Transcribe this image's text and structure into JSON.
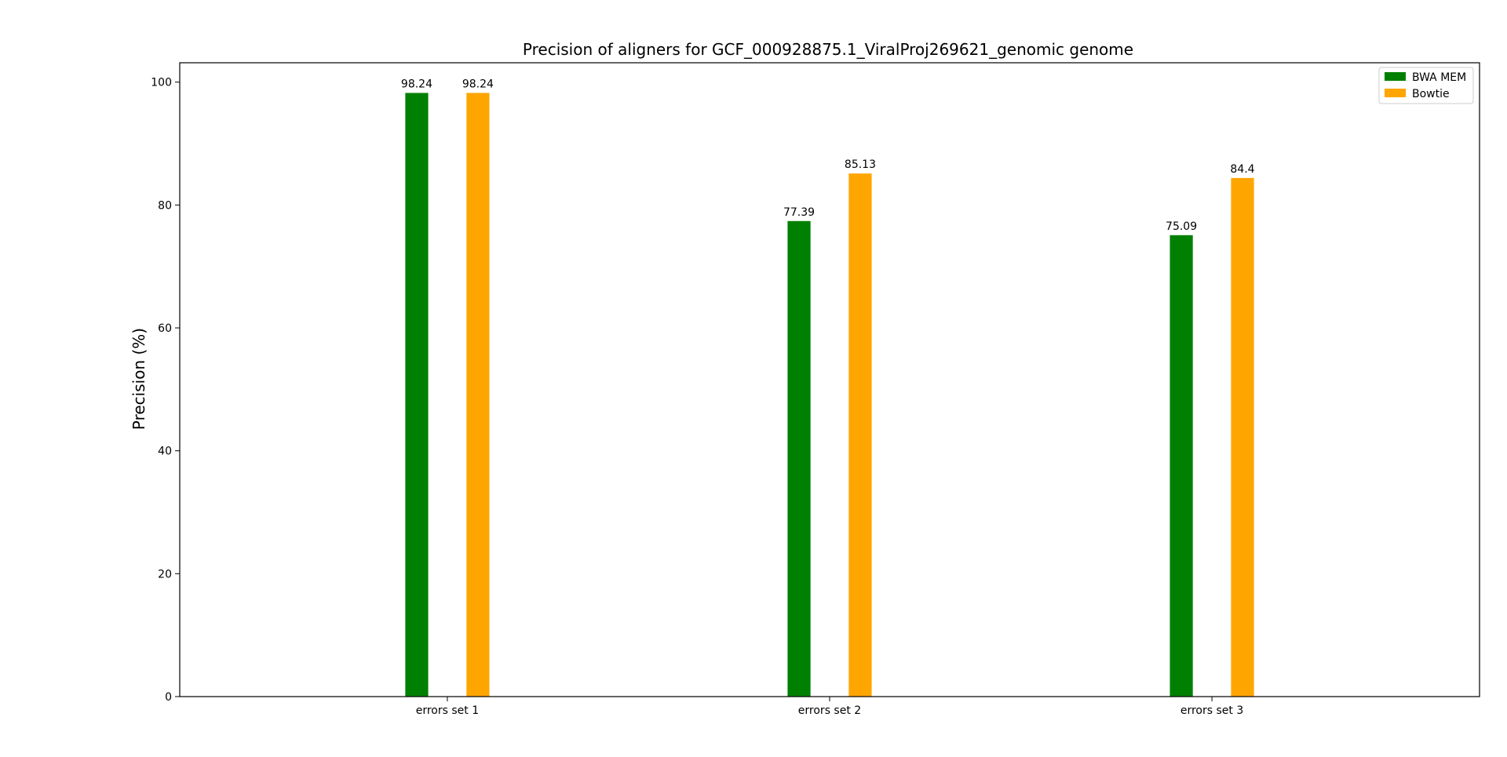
{
  "chart_data": {
    "type": "bar",
    "title": "Precision of aligners for GCF_000928875.1_ViralProj269621_genomic genome",
    "xlabel": "",
    "ylabel": "Precision (%)",
    "categories": [
      "errors set 1",
      "errors set 2",
      "errors set 3"
    ],
    "series": [
      {
        "name": "BWA MEM",
        "color": "#008000",
        "values": [
          98.24,
          77.39,
          75.09
        ]
      },
      {
        "name": "Bowtie",
        "color": "#ffa500",
        "values": [
          98.24,
          85.13,
          84.4
        ]
      }
    ],
    "data_labels": [
      [
        "98.24",
        "77.39",
        "75.09"
      ],
      [
        "98.24",
        "85.13",
        "84.4"
      ]
    ],
    "ylim": [
      0,
      103.15
    ],
    "yticks": [
      0,
      20,
      40,
      60,
      80,
      100
    ],
    "ytick_labels": [
      "0",
      "20",
      "40",
      "60",
      "80",
      "100"
    ],
    "legend_position": "top-right",
    "grid": false
  }
}
